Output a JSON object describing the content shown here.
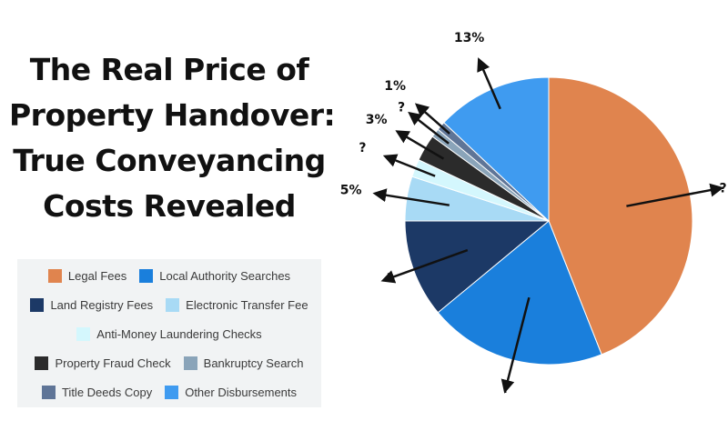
{
  "title_lines": [
    "The Real Price of",
    "Property Handover:",
    "True Conveyancing",
    "Costs Revealed"
  ],
  "legend_rows": [
    [
      0,
      1
    ],
    [
      2,
      3
    ],
    [
      4
    ],
    [
      5,
      6
    ],
    [
      7,
      8
    ]
  ],
  "chart_data": {
    "type": "pie",
    "title": "The Real Price of Property Handover: True Conveyancing Costs Revealed",
    "slices": [
      {
        "label": "Legal Fees",
        "value": 44,
        "color": "#e0844e",
        "callout": "?"
      },
      {
        "label": "Local Authority Searches",
        "value": 20,
        "color": "#1a7fdc",
        "callout": "?"
      },
      {
        "label": "Land Registry Fees",
        "value": 11,
        "color": "#1c3966",
        "callout": "?"
      },
      {
        "label": "Electronic Transfer Fee",
        "value": 5,
        "color": "#a8daf5",
        "callout": "5%"
      },
      {
        "label": "Anti-Money Laundering Checks",
        "value": 2,
        "color": "#d4f7fd",
        "callout": "?"
      },
      {
        "label": "Property Fraud Check",
        "value": 3,
        "color": "#2b2b2b",
        "callout": "3%"
      },
      {
        "label": "Bankruptcy Search",
        "value": 1,
        "color": "#8aa4b9",
        "callout": "?"
      },
      {
        "label": "Title Deeds Copy",
        "value": 1,
        "color": "#5f7597",
        "callout": "1%"
      },
      {
        "label": "Other Disbursements",
        "value": 13,
        "color": "#3f9bf0",
        "callout": "13%"
      }
    ],
    "start_angle_deg": 0,
    "direction": "clockwise",
    "legend_position": "bottom-left"
  }
}
